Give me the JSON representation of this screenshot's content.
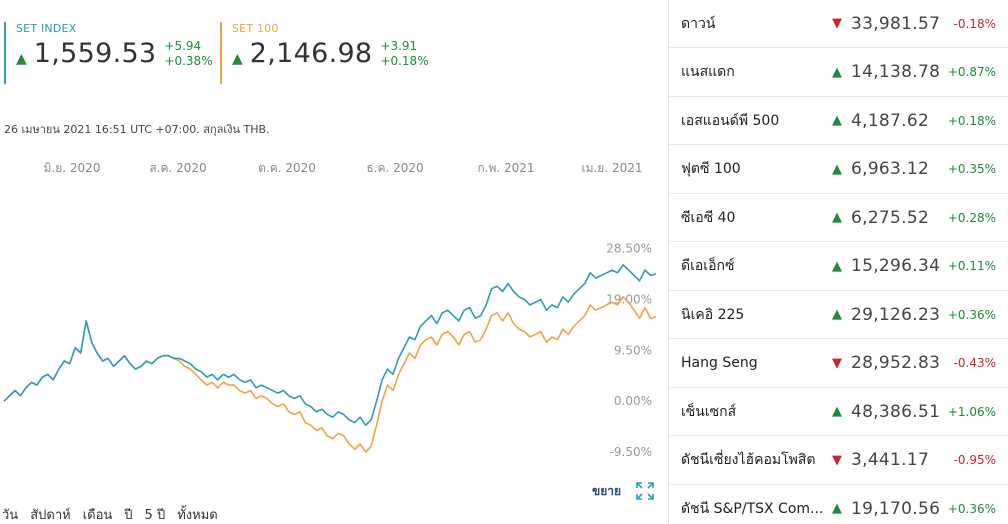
{
  "indices": [
    {
      "name": "SET INDEX",
      "value": "1,559.53",
      "change": "+5.94",
      "change_pct": "+0.38%",
      "direction": "up",
      "color": "#2e9bb8"
    },
    {
      "name": "SET 100",
      "value": "2,146.98",
      "change": "+3.91",
      "change_pct": "+0.18%",
      "direction": "up",
      "color": "#f2a344"
    }
  ],
  "timestamp": "26 เมษายน 2021 16:51 UTC +07:00. สกุลเงิน THB.",
  "chart_data": {
    "type": "line",
    "x_tick_labels": [
      "มิ.ย. 2020",
      "ส.ค. 2020",
      "ต.ค. 2020",
      "ธ.ค. 2020",
      "ก.พ. 2021",
      "เม.ย. 2021"
    ],
    "y_tick_labels": [
      "28.50%",
      "19.00%",
      "9.50%",
      "0.00%",
      "-9.50%"
    ],
    "y_ticks": [
      28.5,
      19.0,
      9.5,
      0.0,
      -9.5
    ],
    "ylim": [
      -11,
      32
    ],
    "grid": false,
    "series": [
      {
        "name": "SET INDEX",
        "color": "#2e9bb8",
        "values": [
          0.0,
          1.0,
          2.0,
          1.0,
          2.5,
          3.5,
          3.0,
          4.5,
          5.0,
          4.0,
          6.0,
          7.5,
          7.0,
          10.0,
          9.0,
          15.0,
          11.0,
          9.0,
          7.5,
          8.0,
          6.5,
          7.5,
          8.5,
          7.0,
          6.0,
          6.5,
          7.5,
          7.0,
          8.0,
          8.5,
          8.5,
          8.0,
          8.0,
          7.5,
          7.0,
          6.0,
          5.5,
          4.5,
          5.0,
          4.0,
          5.0,
          4.5,
          5.0,
          4.0,
          3.5,
          4.0,
          2.5,
          3.0,
          2.5,
          2.0,
          1.5,
          2.0,
          1.0,
          0.5,
          1.0,
          -0.5,
          -1.0,
          -2.0,
          -1.5,
          -2.5,
          -3.0,
          -2.0,
          -2.5,
          -3.5,
          -4.0,
          -3.0,
          -4.5,
          -3.5,
          0.0,
          4.0,
          6.0,
          5.0,
          8.0,
          10.0,
          12.0,
          11.5,
          14.0,
          15.0,
          16.0,
          14.5,
          16.5,
          17.0,
          16.0,
          15.0,
          17.0,
          17.5,
          15.5,
          16.0,
          18.0,
          21.0,
          21.5,
          20.5,
          22.0,
          20.5,
          19.5,
          19.0,
          18.0,
          18.5,
          19.0,
          17.0,
          18.0,
          17.5,
          19.5,
          18.5,
          20.0,
          21.0,
          22.0,
          24.0,
          23.0,
          23.5,
          24.0,
          24.5,
          24.0,
          25.5,
          24.5,
          23.5,
          22.5,
          24.5,
          23.5,
          23.8
        ]
      },
      {
        "name": "SET 100",
        "color": "#f2a344",
        "values": [
          0.0,
          1.0,
          2.0,
          1.0,
          2.5,
          3.5,
          3.0,
          4.5,
          5.0,
          4.0,
          6.0,
          7.5,
          7.0,
          10.0,
          9.0,
          15.0,
          11.0,
          9.0,
          7.5,
          8.0,
          6.5,
          7.5,
          8.5,
          7.0,
          6.0,
          6.5,
          7.5,
          7.0,
          8.0,
          8.5,
          8.5,
          8.0,
          7.5,
          6.5,
          6.0,
          5.0,
          4.0,
          3.0,
          3.5,
          2.5,
          3.5,
          3.0,
          3.0,
          2.0,
          1.5,
          2.0,
          0.5,
          1.0,
          0.5,
          -0.5,
          -1.0,
          -0.5,
          -2.0,
          -2.5,
          -2.0,
          -4.0,
          -4.5,
          -5.5,
          -5.0,
          -6.5,
          -7.0,
          -6.0,
          -6.5,
          -8.0,
          -9.0,
          -8.0,
          -9.5,
          -8.5,
          -4.5,
          0.0,
          3.0,
          2.0,
          5.0,
          7.0,
          9.0,
          8.0,
          10.5,
          11.5,
          12.0,
          10.5,
          12.5,
          13.0,
          12.0,
          10.5,
          12.5,
          13.0,
          11.0,
          11.5,
          13.5,
          16.0,
          16.5,
          15.0,
          16.5,
          14.5,
          13.5,
          13.0,
          12.0,
          12.5,
          13.0,
          11.0,
          12.0,
          11.5,
          13.5,
          12.5,
          14.0,
          15.0,
          16.0,
          18.0,
          17.0,
          17.5,
          18.0,
          18.5,
          18.0,
          19.5,
          18.5,
          17.0,
          15.5,
          17.5,
          15.5,
          15.8
        ]
      }
    ]
  },
  "expand_label": "ขยาย",
  "ranges": [
    "วัน",
    "สัปดาห์",
    "เดือน",
    "ปี",
    "5 ปี",
    "ทั้งหมด"
  ],
  "markets": [
    {
      "name": "ดาวน์",
      "value": "33,981.57",
      "change": "-0.18%",
      "direction": "down"
    },
    {
      "name": "แนสแดก",
      "value": "14,138.78",
      "change": "+0.87%",
      "direction": "up"
    },
    {
      "name": "เอสแอนด์พี 500",
      "value": "4,187.62",
      "change": "+0.18%",
      "direction": "up"
    },
    {
      "name": "ฟุตซี 100",
      "value": "6,963.12",
      "change": "+0.35%",
      "direction": "up"
    },
    {
      "name": "ซีเอซี 40",
      "value": "6,275.52",
      "change": "+0.28%",
      "direction": "up"
    },
    {
      "name": "ดีเอเอ็กซ์",
      "value": "15,296.34",
      "change": "+0.11%",
      "direction": "up"
    },
    {
      "name": "นิเคอิ 225",
      "value": "29,126.23",
      "change": "+0.36%",
      "direction": "up"
    },
    {
      "name": "Hang Seng",
      "value": "28,952.83",
      "change": "-0.43%",
      "direction": "down"
    },
    {
      "name": "เซ็นเซกส์",
      "value": "48,386.51",
      "change": "+1.06%",
      "direction": "up"
    },
    {
      "name": "ดัชนีเซี่ยงไฮ้คอมโพสิต",
      "value": "3,441.17",
      "change": "-0.95%",
      "direction": "down"
    },
    {
      "name": "ดัชนี S&P/TSX Com...",
      "value": "19,170.56",
      "change": "+0.36%",
      "direction": "up"
    }
  ]
}
